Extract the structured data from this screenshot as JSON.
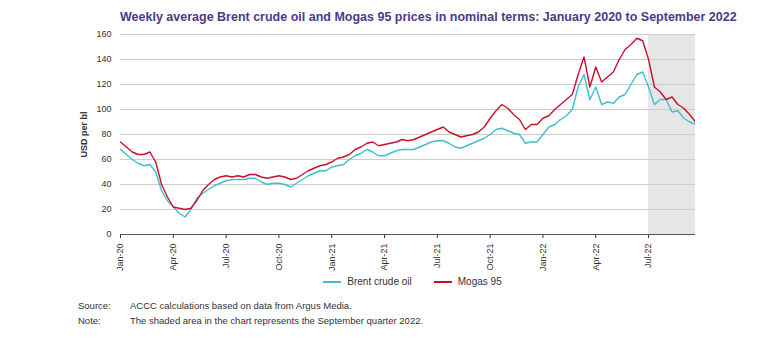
{
  "chart_data": {
    "type": "line",
    "title": "Weekly average Brent crude oil and Mogas 95 prices in nominal terms: January 2020 to September 2022",
    "y_label": "USD per bl",
    "categories": [
      "Jan-20",
      null,
      null,
      null,
      null,
      null,
      null,
      null,
      null,
      "Apr-20",
      null,
      null,
      null,
      null,
      null,
      null,
      null,
      null,
      "Jul-20",
      null,
      null,
      null,
      null,
      null,
      null,
      null,
      null,
      "Oct-20",
      null,
      null,
      null,
      null,
      null,
      null,
      null,
      null,
      "Jan-21",
      null,
      null,
      null,
      null,
      null,
      null,
      null,
      null,
      "Apr-21",
      null,
      null,
      null,
      null,
      null,
      null,
      null,
      null,
      "Jul-21",
      null,
      null,
      null,
      null,
      null,
      null,
      null,
      null,
      "Oct-21",
      null,
      null,
      null,
      null,
      null,
      null,
      null,
      null,
      "Jan-22",
      null,
      null,
      null,
      null,
      null,
      null,
      null,
      null,
      "Apr-22",
      null,
      null,
      null,
      null,
      null,
      null,
      null,
      null,
      "Jul-22",
      null,
      null,
      null,
      null,
      null,
      null,
      null,
      null
    ],
    "series": [
      {
        "name": "Brent crude oil",
        "color": "#3dbfce",
        "values": [
          68,
          64,
          60,
          57,
          55,
          56,
          50,
          35,
          27,
          22,
          17,
          14,
          20,
          29,
          33,
          36,
          39,
          41,
          43,
          44,
          44,
          44,
          45,
          45,
          42,
          40,
          41,
          41,
          40,
          38,
          41,
          44,
          47,
          49,
          51,
          51,
          54,
          55,
          56,
          60,
          63,
          65,
          68,
          66,
          63,
          63,
          65,
          67,
          68,
          68,
          68,
          70,
          72,
          74,
          75,
          75,
          73,
          70,
          69,
          71,
          73,
          75,
          77,
          80,
          84,
          85,
          83,
          81,
          80,
          73,
          74,
          74,
          80,
          86,
          88,
          92,
          95,
          100,
          118,
          128,
          108,
          118,
          104,
          106,
          105,
          110,
          112,
          120,
          128,
          130,
          118,
          104,
          108,
          108,
          98,
          99,
          93,
          90,
          88
        ]
      },
      {
        "name": "Mogas 95",
        "color": "#c8102e",
        "values": [
          74,
          70,
          66,
          64,
          64,
          66,
          58,
          40,
          30,
          22,
          21,
          20,
          21,
          27,
          35,
          40,
          44,
          46,
          47,
          46,
          47,
          46,
          48,
          48,
          46,
          45,
          46,
          47,
          46,
          44,
          45,
          48,
          51,
          53,
          55,
          56,
          58,
          61,
          62,
          64,
          68,
          70,
          73,
          74,
          71,
          72,
          73,
          74,
          76,
          75,
          76,
          78,
          80,
          82,
          84,
          86,
          82,
          80,
          78,
          79,
          80,
          82,
          86,
          93,
          99,
          104,
          101,
          96,
          92,
          84,
          88,
          88,
          93,
          95,
          100,
          104,
          108,
          112,
          128,
          142,
          118,
          134,
          122,
          126,
          130,
          140,
          148,
          152,
          157,
          155,
          140,
          118,
          114,
          108,
          110,
          104,
          101,
          96,
          90
        ]
      }
    ],
    "ylim": [
      0,
      160
    ],
    "yticks": [
      0,
      20,
      40,
      60,
      80,
      100,
      120,
      140,
      160
    ],
    "grid": true,
    "legend": "bottom",
    "shaded_from": "Jul-22",
    "source_label": "Source:",
    "source": "ACCC calculations based on data from Argus Media.",
    "note_label": "Note:",
    "note": "The shaded area in the chart represents the September quarter 2022."
  }
}
